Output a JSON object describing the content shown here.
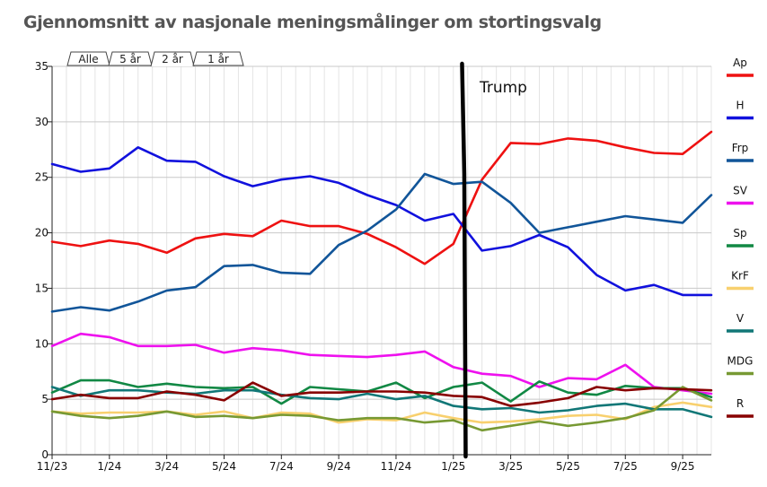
{
  "title": "Gjennomsnitt av nasjonale meningsmålinger om stortingsvalg",
  "tabs": [
    {
      "label": "Alle",
      "active": false
    },
    {
      "label": "5 år",
      "active": false
    },
    {
      "label": "2 år",
      "active": true
    },
    {
      "label": "1 år",
      "active": false
    }
  ],
  "chart_data": {
    "type": "line",
    "title": "Gjennomsnitt av nasjonale meningsmålinger om stortingsvalg",
    "xlabel": "",
    "ylabel": "",
    "ylim": [
      0,
      35
    ],
    "yticks": [
      0,
      5,
      10,
      15,
      20,
      25,
      30,
      35
    ],
    "x_months_range": [
      0,
      23
    ],
    "x_tick_labels": [
      {
        "label": "11/23",
        "month": 0
      },
      {
        "label": "1/24",
        "month": 2
      },
      {
        "label": "3/24",
        "month": 4
      },
      {
        "label": "5/24",
        "month": 6
      },
      {
        "label": "7/24",
        "month": 8
      },
      {
        "label": "9/24",
        "month": 10
      },
      {
        "label": "11/24",
        "month": 12
      },
      {
        "label": "1/25",
        "month": 14
      },
      {
        "label": "3/25",
        "month": 16
      },
      {
        "label": "5/25",
        "month": 18
      },
      {
        "label": "7/25",
        "month": 20
      },
      {
        "label": "9/25",
        "month": 22
      }
    ],
    "x": [
      0,
      1,
      2,
      3,
      4,
      5,
      6,
      7,
      8,
      9,
      10,
      11,
      12,
      13,
      14,
      15,
      16,
      17,
      18,
      19,
      20,
      21,
      22,
      23
    ],
    "grid": true,
    "legend_position": "right",
    "annotation": {
      "label": "Trump",
      "month": 14.35
    },
    "series": [
      {
        "name": "Ap",
        "color": "#ee1111",
        "values": [
          19.2,
          18.8,
          19.3,
          19.0,
          18.2,
          19.5,
          19.9,
          19.7,
          21.1,
          20.6,
          20.6,
          19.9,
          18.7,
          17.2,
          19.0,
          24.8,
          28.1,
          28.0,
          28.5,
          28.3,
          27.7,
          27.2,
          27.1,
          29.1
        ]
      },
      {
        "name": "H",
        "color": "#1111dd",
        "values": [
          26.2,
          25.5,
          25.8,
          27.7,
          26.5,
          26.4,
          25.1,
          24.2,
          24.8,
          25.1,
          24.5,
          23.4,
          22.5,
          21.1,
          21.7,
          18.4,
          18.8,
          19.8,
          18.7,
          16.2,
          14.8,
          15.3,
          14.4,
          14.4
        ]
      },
      {
        "name": "Frp",
        "color": "#115599",
        "values": [
          12.9,
          13.3,
          13.0,
          13.8,
          14.8,
          15.1,
          17.0,
          17.1,
          16.4,
          16.3,
          18.9,
          20.2,
          22.1,
          25.3,
          24.4,
          24.6,
          22.7,
          20.0,
          20.5,
          21.0,
          21.5,
          21.2,
          20.9,
          23.4
        ]
      },
      {
        "name": "SV",
        "color": "#ee11ee",
        "values": [
          9.8,
          10.9,
          10.6,
          9.8,
          9.8,
          9.9,
          9.2,
          9.6,
          9.4,
          9.0,
          8.9,
          8.8,
          9.0,
          9.3,
          7.9,
          7.3,
          7.1,
          6.1,
          6.9,
          6.8,
          8.1,
          6.1,
          5.8,
          5.5
        ]
      },
      {
        "name": "Sp",
        "color": "#118844",
        "values": [
          5.6,
          6.7,
          6.7,
          6.1,
          6.4,
          6.1,
          6.0,
          6.1,
          4.6,
          6.1,
          5.9,
          5.7,
          6.5,
          5.1,
          6.1,
          6.5,
          4.8,
          6.6,
          5.6,
          5.4,
          6.2,
          6.0,
          6.0,
          5.2
        ]
      },
      {
        "name": "KrF",
        "color": "#f8d06e",
        "values": [
          3.9,
          3.7,
          3.8,
          3.8,
          3.9,
          3.6,
          3.9,
          3.3,
          3.8,
          3.7,
          2.9,
          3.2,
          3.1,
          3.8,
          3.3,
          2.9,
          3.0,
          3.2,
          3.5,
          3.6,
          3.2,
          4.3,
          4.7,
          4.3
        ]
      },
      {
        "name": "V",
        "color": "#117777",
        "values": [
          6.1,
          5.3,
          5.8,
          5.8,
          5.6,
          5.5,
          5.8,
          5.8,
          5.4,
          5.1,
          5.0,
          5.5,
          5.0,
          5.3,
          4.4,
          4.1,
          4.2,
          3.8,
          4.0,
          4.4,
          4.6,
          4.1,
          4.1,
          3.4
        ]
      },
      {
        "name": "MDG",
        "color": "#779933",
        "values": [
          3.9,
          3.5,
          3.3,
          3.5,
          3.9,
          3.4,
          3.5,
          3.3,
          3.6,
          3.5,
          3.1,
          3.3,
          3.3,
          2.9,
          3.1,
          2.2,
          2.6,
          3.0,
          2.6,
          2.9,
          3.3,
          4.0,
          6.1,
          4.9
        ]
      },
      {
        "name": "R",
        "color": "#880000",
        "values": [
          5.0,
          5.4,
          5.1,
          5.1,
          5.7,
          5.4,
          4.9,
          6.5,
          5.3,
          5.6,
          5.6,
          5.7,
          5.7,
          5.6,
          5.3,
          5.2,
          4.4,
          4.7,
          5.1,
          6.1,
          5.8,
          6.0,
          5.9,
          5.8
        ]
      }
    ]
  }
}
